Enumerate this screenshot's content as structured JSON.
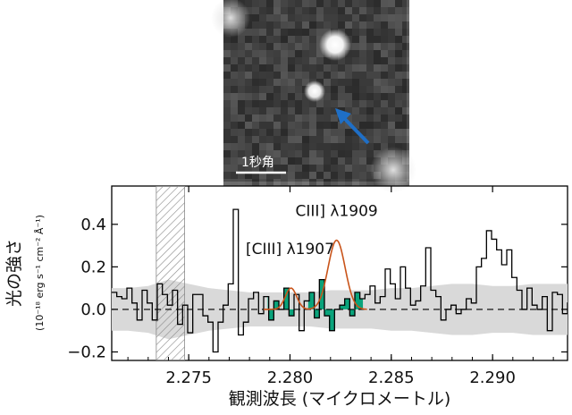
{
  "image_panel": {
    "scale_bar_label": "1秒角",
    "arrow_color": "#1f6fc6"
  },
  "chart_data": {
    "type": "line",
    "xlabel": "観測波長 (マイクロメートル)",
    "ylabel": "光の強さ",
    "ylabel_units": "(10⁻¹⁸ erg s⁻¹ cm⁻² Å⁻¹)",
    "xlim": [
      2.2712,
      2.2937
    ],
    "ylim": [
      -0.24,
      0.58
    ],
    "x_ticks": [
      2.275,
      2.28,
      2.285,
      2.29
    ],
    "x_tick_labels": [
      "2.275",
      "2.280",
      "2.285",
      "2.290"
    ],
    "y_ticks": [
      -0.2,
      0.0,
      0.2,
      0.4
    ],
    "y_tick_labels": [
      "−0.2",
      "0.0",
      "0.2",
      "0.4"
    ],
    "annotations": [
      {
        "text": "[CIII] λ1907",
        "x": 2.28,
        "y": 0.26
      },
      {
        "text": "CIII] λ1909",
        "x": 2.2823,
        "y": 0.44
      }
    ],
    "zero_line": {
      "y": 0.0,
      "style": "dashed"
    },
    "masked_region": {
      "x_range": [
        2.2734,
        2.2748
      ],
      "style": "hatched"
    },
    "noise_band": {
      "x": [
        2.2712,
        2.272,
        2.273,
        2.274,
        2.275,
        2.276,
        2.277,
        2.278,
        2.279,
        2.28,
        2.281,
        2.282,
        2.283,
        2.284,
        2.285,
        2.286,
        2.287,
        2.288,
        2.289,
        2.29,
        2.291,
        2.292,
        2.293,
        2.2937
      ],
      "sigma": [
        0.1,
        0.1,
        0.11,
        0.14,
        0.12,
        0.1,
        0.09,
        0.08,
        0.08,
        0.08,
        0.08,
        0.09,
        0.09,
        0.09,
        0.1,
        0.1,
        0.11,
        0.12,
        0.12,
        0.11,
        0.11,
        0.12,
        0.12,
        0.12
      ]
    },
    "spectrum": {
      "bin_edges_start": 2.2712,
      "bin_width": 0.00025,
      "flux": [
        0.08,
        0.06,
        0.05,
        0.1,
        0.03,
        -0.05,
        0.09,
        0.03,
        -0.05,
        0.12,
        0.07,
        0.02,
        0.09,
        -0.07,
        0.02,
        -0.11,
        0.07,
        0.07,
        -0.03,
        -0.06,
        -0.2,
        -0.06,
        0.02,
        0.12,
        0.47,
        -0.12,
        -0.06,
        0.05,
        0.08,
        -0.02,
        0.06,
        -0.05,
        0.04,
        0.0,
        0.1,
        -0.03,
        0.07,
        -0.1,
        0.04,
        0.08,
        -0.04,
        0.14,
        -0.03,
        -0.1,
        0.0,
        0.02,
        0.05,
        -0.03,
        0.08,
        0.05,
        0.07,
        0.11,
        0.03,
        0.06,
        0.19,
        0.12,
        0.05,
        0.2,
        0.1,
        0.02,
        0.04,
        0.11,
        0.29,
        0.09,
        0.06,
        -0.05,
        0.0,
        0.02,
        -0.02,
        0.0,
        0.05,
        0.03,
        0.2,
        0.24,
        0.37,
        0.33,
        0.28,
        0.21,
        0.28,
        0.15,
        0.09,
        0.0,
        0.1,
        0.02,
        0.0,
        0.06,
        -0.1,
        0.08,
        0.07,
        -0.02,
        0.03,
        0.0,
        0.1,
        0.05,
        0.12,
        0.04,
        -0.04,
        0.07,
        0.09,
        0.03
      ],
      "fill_ranges": [
        [
          2.2789,
          2.2802
        ],
        [
          2.2809,
          2.2836
        ]
      ],
      "fill_color": "#0aa37b"
    },
    "gaussian_fit": {
      "color": "#c9541a",
      "components": [
        {
          "center": 2.28005,
          "amplitude": 0.1,
          "sigma": 0.00028
        },
        {
          "center": 2.2823,
          "amplitude": 0.325,
          "sigma": 0.00042
        }
      ],
      "x_range": [
        2.2787,
        2.2838
      ]
    }
  }
}
